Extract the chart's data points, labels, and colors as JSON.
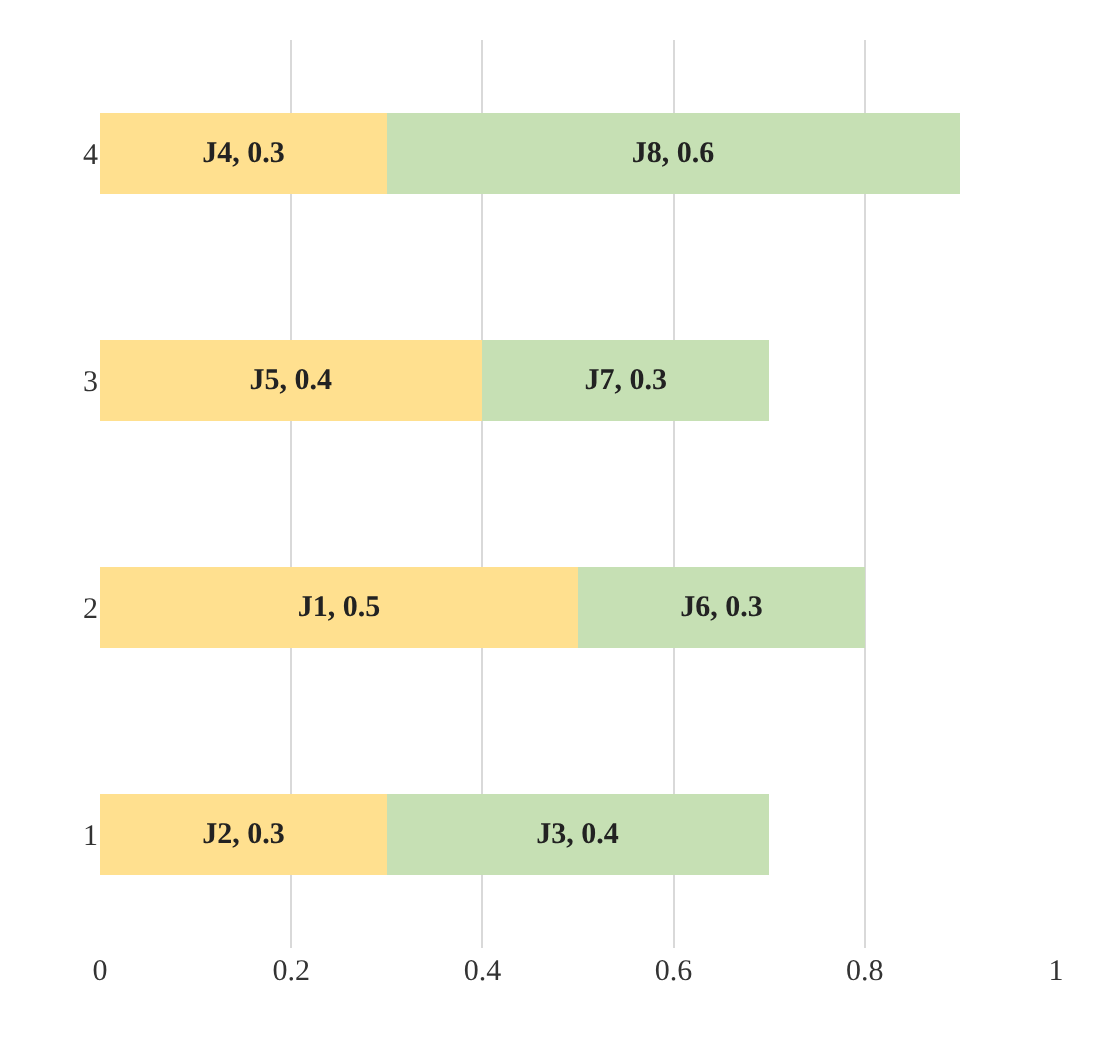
{
  "chart_data": {
    "type": "bar",
    "orientation": "horizontal",
    "stacked": true,
    "categories": [
      "4",
      "3",
      "2",
      "1"
    ],
    "series": [
      {
        "color": "#ffe08f",
        "values": [
          0.3,
          0.4,
          0.5,
          0.3
        ],
        "value_labels": [
          "J4, 0.3",
          "J5, 0.4",
          "J1, 0.5",
          "J2, 0.3"
        ]
      },
      {
        "color": "#c6e0b4",
        "values": [
          0.6,
          0.3,
          0.3,
          0.4
        ],
        "value_labels": [
          "J8, 0.6",
          "J7, 0.3",
          "J6, 0.3",
          "J3, 0.4"
        ]
      }
    ],
    "xlim": [
      0,
      1
    ],
    "xticks": [
      0,
      0.2,
      0.4,
      0.6,
      0.8,
      1
    ],
    "grid": "x"
  }
}
